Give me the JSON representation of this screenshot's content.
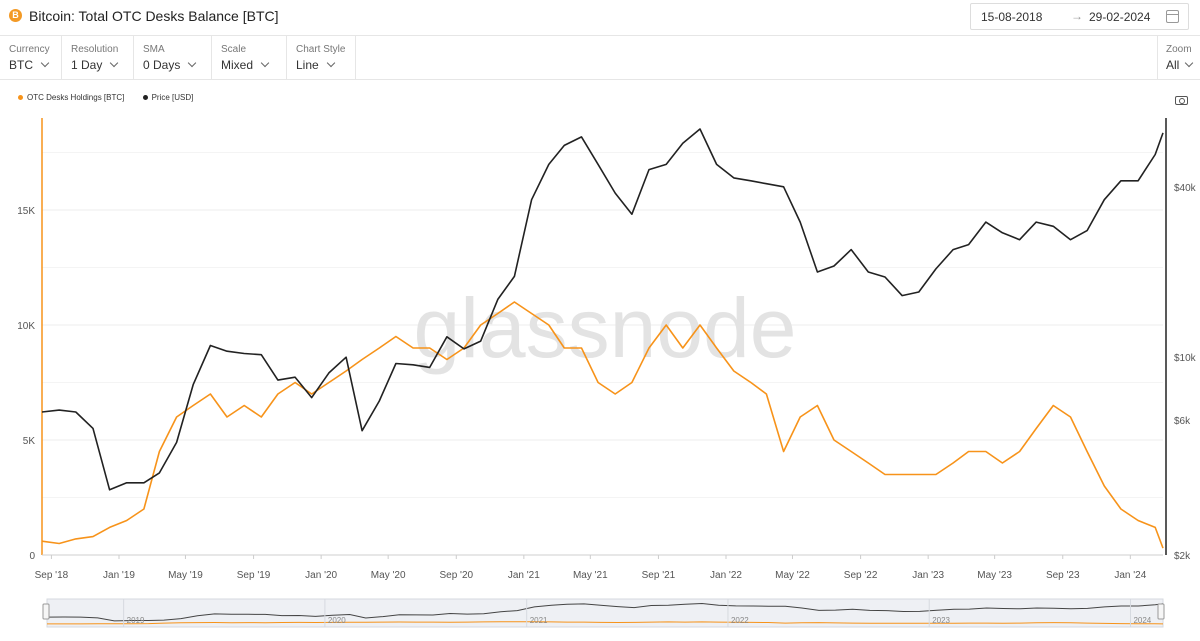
{
  "header": {
    "title": "Bitcoin: Total OTC Desks Balance [BTC]",
    "coin_icon": "bitcoin-icon",
    "coin_icon_glyph": "B",
    "date_from": "15-08-2018",
    "date_arrow": "→",
    "date_to": "29-02-2024",
    "calendar_icon": "calendar-icon"
  },
  "toolbar": {
    "currency": {
      "label": "Currency",
      "value": "BTC"
    },
    "resolution": {
      "label": "Resolution",
      "value": "1 Day"
    },
    "sma": {
      "label": "SMA",
      "value": "0 Days"
    },
    "scale": {
      "label": "Scale",
      "value": "Mixed"
    },
    "chart_style": {
      "label": "Chart Style",
      "value": "Line"
    },
    "zoom": {
      "label": "Zoom",
      "value": "All"
    }
  },
  "chart_data": {
    "type": "line",
    "title": "Bitcoin: Total OTC Desks Balance [BTC]",
    "watermark": "glassnode",
    "x_range": [
      "2018-08-15",
      "2024-02-29"
    ],
    "x_tick_labels": [
      "Sep '18",
      "Jan '19",
      "May '19",
      "Sep '19",
      "Jan '20",
      "May '20",
      "Sep '20",
      "Jan '21",
      "May '21",
      "Sep '21",
      "Jan '22",
      "May '22",
      "Sep '22",
      "Jan '23",
      "May '23",
      "Sep '23",
      "Jan '24"
    ],
    "y_left": {
      "label": "OTC Desks Holdings [BTC]",
      "scale": "linear",
      "range": [
        0,
        19000
      ],
      "ticks": [
        0,
        5000,
        10000,
        15000
      ],
      "tick_labels": [
        "0",
        "5K",
        "10K",
        "15K"
      ]
    },
    "y_right": {
      "label": "Price [USD]",
      "scale": "log",
      "range": [
        2000,
        70000
      ],
      "ticks": [
        2000,
        6000,
        10000,
        40000
      ],
      "tick_labels": [
        "$2k",
        "$6k",
        "$10k",
        "$40k"
      ]
    },
    "legend": [
      {
        "name": "OTC Desks Holdings [BTC]",
        "color": "#f7931a"
      },
      {
        "name": "Price [USD]",
        "color": "#222222"
      }
    ],
    "series": [
      {
        "name": "OTC Desks Holdings [BTC]",
        "axis": "left",
        "color": "#f7931a",
        "points": [
          [
            "2018-08-15",
            600
          ],
          [
            "2018-09-15",
            500
          ],
          [
            "2018-10-15",
            700
          ],
          [
            "2018-11-15",
            800
          ],
          [
            "2018-12-15",
            1200
          ],
          [
            "2019-01-15",
            1500
          ],
          [
            "2019-02-15",
            2000
          ],
          [
            "2019-03-15",
            4500
          ],
          [
            "2019-04-15",
            6000
          ],
          [
            "2019-05-15",
            6500
          ],
          [
            "2019-06-15",
            7000
          ],
          [
            "2019-07-15",
            6000
          ],
          [
            "2019-08-15",
            6500
          ],
          [
            "2019-09-15",
            6000
          ],
          [
            "2019-10-15",
            7000
          ],
          [
            "2019-11-15",
            7500
          ],
          [
            "2019-12-15",
            7000
          ],
          [
            "2020-01-15",
            7500
          ],
          [
            "2020-02-15",
            8000
          ],
          [
            "2020-03-15",
            8500
          ],
          [
            "2020-04-15",
            9000
          ],
          [
            "2020-05-15",
            9500
          ],
          [
            "2020-06-15",
            9000
          ],
          [
            "2020-07-15",
            9000
          ],
          [
            "2020-08-15",
            8500
          ],
          [
            "2020-09-15",
            9000
          ],
          [
            "2020-10-15",
            10000
          ],
          [
            "2020-11-15",
            10500
          ],
          [
            "2020-12-15",
            11000
          ],
          [
            "2021-01-15",
            10500
          ],
          [
            "2021-02-15",
            10000
          ],
          [
            "2021-03-15",
            9000
          ],
          [
            "2021-04-15",
            9000
          ],
          [
            "2021-05-15",
            7500
          ],
          [
            "2021-06-15",
            7000
          ],
          [
            "2021-07-15",
            7500
          ],
          [
            "2021-08-15",
            9000
          ],
          [
            "2021-09-15",
            10000
          ],
          [
            "2021-10-15",
            9000
          ],
          [
            "2021-11-15",
            10000
          ],
          [
            "2021-12-15",
            9000
          ],
          [
            "2022-01-15",
            8000
          ],
          [
            "2022-02-15",
            7500
          ],
          [
            "2022-03-15",
            7000
          ],
          [
            "2022-04-15",
            4500
          ],
          [
            "2022-05-15",
            6000
          ],
          [
            "2022-06-15",
            6500
          ],
          [
            "2022-07-15",
            5000
          ],
          [
            "2022-08-15",
            4500
          ],
          [
            "2022-09-15",
            4000
          ],
          [
            "2022-10-15",
            3500
          ],
          [
            "2022-11-15",
            3500
          ],
          [
            "2022-12-15",
            3500
          ],
          [
            "2023-01-15",
            3500
          ],
          [
            "2023-02-15",
            4000
          ],
          [
            "2023-03-15",
            4500
          ],
          [
            "2023-04-15",
            4500
          ],
          [
            "2023-05-15",
            4000
          ],
          [
            "2023-06-15",
            4500
          ],
          [
            "2023-07-15",
            5500
          ],
          [
            "2023-08-15",
            6500
          ],
          [
            "2023-09-15",
            6000
          ],
          [
            "2023-10-15",
            4500
          ],
          [
            "2023-11-15",
            3000
          ],
          [
            "2023-12-15",
            2000
          ],
          [
            "2024-01-15",
            1500
          ],
          [
            "2024-02-15",
            1200
          ],
          [
            "2024-02-29",
            300
          ]
        ]
      },
      {
        "name": "Price [USD]",
        "axis": "right",
        "color": "#222222",
        "points": [
          [
            "2018-08-15",
            6400
          ],
          [
            "2018-09-15",
            6500
          ],
          [
            "2018-10-15",
            6400
          ],
          [
            "2018-11-15",
            5600
          ],
          [
            "2018-12-15",
            3400
          ],
          [
            "2019-01-15",
            3600
          ],
          [
            "2019-02-15",
            3600
          ],
          [
            "2019-03-15",
            3900
          ],
          [
            "2019-04-15",
            5000
          ],
          [
            "2019-05-15",
            8000
          ],
          [
            "2019-06-15",
            11000
          ],
          [
            "2019-07-15",
            10500
          ],
          [
            "2019-08-15",
            10300
          ],
          [
            "2019-09-15",
            10200
          ],
          [
            "2019-10-15",
            8300
          ],
          [
            "2019-11-15",
            8500
          ],
          [
            "2019-12-15",
            7200
          ],
          [
            "2020-01-15",
            8800
          ],
          [
            "2020-02-15",
            10000
          ],
          [
            "2020-03-15",
            5500
          ],
          [
            "2020-04-15",
            7000
          ],
          [
            "2020-05-15",
            9500
          ],
          [
            "2020-06-15",
            9400
          ],
          [
            "2020-07-15",
            9200
          ],
          [
            "2020-08-15",
            11800
          ],
          [
            "2020-09-15",
            10700
          ],
          [
            "2020-10-15",
            11400
          ],
          [
            "2020-11-15",
            16000
          ],
          [
            "2020-12-15",
            19300
          ],
          [
            "2021-01-15",
            36000
          ],
          [
            "2021-02-15",
            48000
          ],
          [
            "2021-03-15",
            56000
          ],
          [
            "2021-04-15",
            60000
          ],
          [
            "2021-05-15",
            48000
          ],
          [
            "2021-06-15",
            38000
          ],
          [
            "2021-07-15",
            32000
          ],
          [
            "2021-08-15",
            46000
          ],
          [
            "2021-09-15",
            48000
          ],
          [
            "2021-10-15",
            57000
          ],
          [
            "2021-11-15",
            64000
          ],
          [
            "2021-12-15",
            48000
          ],
          [
            "2022-01-15",
            43000
          ],
          [
            "2022-02-15",
            42000
          ],
          [
            "2022-03-15",
            41000
          ],
          [
            "2022-04-15",
            40000
          ],
          [
            "2022-05-15",
            30000
          ],
          [
            "2022-06-15",
            20000
          ],
          [
            "2022-07-15",
            21000
          ],
          [
            "2022-08-15",
            24000
          ],
          [
            "2022-09-15",
            20000
          ],
          [
            "2022-10-15",
            19200
          ],
          [
            "2022-11-15",
            16500
          ],
          [
            "2022-12-15",
            17000
          ],
          [
            "2023-01-15",
            20500
          ],
          [
            "2023-02-15",
            24000
          ],
          [
            "2023-03-15",
            25000
          ],
          [
            "2023-04-15",
            30000
          ],
          [
            "2023-05-15",
            27500
          ],
          [
            "2023-06-15",
            26000
          ],
          [
            "2023-07-15",
            30000
          ],
          [
            "2023-08-15",
            29000
          ],
          [
            "2023-09-15",
            26000
          ],
          [
            "2023-10-15",
            28000
          ],
          [
            "2023-11-15",
            36000
          ],
          [
            "2023-12-15",
            42000
          ],
          [
            "2024-01-15",
            42000
          ],
          [
            "2024-02-15",
            52000
          ],
          [
            "2024-02-29",
            62000
          ]
        ]
      }
    ],
    "navigator_year_labels": [
      "2019",
      "2020",
      "2021",
      "2022",
      "2023",
      "2024"
    ]
  }
}
